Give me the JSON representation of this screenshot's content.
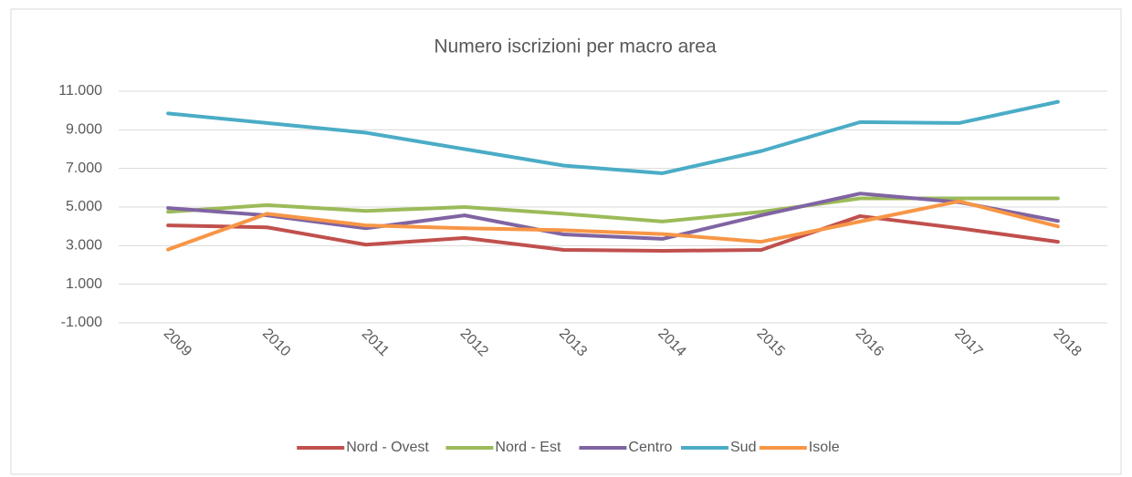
{
  "chart_data": {
    "type": "line",
    "title": "Numero iscrizioni per macro area",
    "categories": [
      "2009",
      "2010",
      "2011",
      "2012",
      "2013",
      "2014",
      "2015",
      "2016",
      "2017",
      "2018"
    ],
    "series": [
      {
        "name": "Nord - Ovest",
        "color": "#c0504d",
        "values": [
          4050,
          3950,
          3050,
          3400,
          2780,
          2730,
          2780,
          4530,
          3900,
          3200
        ]
      },
      {
        "name": "Nord - Est",
        "color": "#9bbb59",
        "values": [
          4750,
          5100,
          4800,
          5000,
          4650,
          4250,
          4750,
          5450,
          5450,
          5450
        ]
      },
      {
        "name": "Centro",
        "color": "#8064a2",
        "values": [
          4950,
          4570,
          3900,
          4570,
          3580,
          3350,
          4570,
          5700,
          5250,
          4280
        ]
      },
      {
        "name": "Sud",
        "color": "#4bacc6",
        "values": [
          9850,
          9350,
          8850,
          8000,
          7150,
          6750,
          7900,
          9400,
          9350,
          10450
        ]
      },
      {
        "name": "Isole",
        "color": "#f79646",
        "values": [
          2800,
          4650,
          4050,
          3900,
          3800,
          3600,
          3200,
          4250,
          5300,
          4000
        ]
      }
    ],
    "ylim": [
      -1000,
      11000
    ],
    "yticks": [
      {
        "value": -1000,
        "label": "-1.000"
      },
      {
        "value": 1000,
        "label": "1.000"
      },
      {
        "value": 3000,
        "label": "3.000"
      },
      {
        "value": 5000,
        "label": "5.000"
      },
      {
        "value": 7000,
        "label": "7.000"
      },
      {
        "value": 9000,
        "label": "9.000"
      },
      {
        "value": 11000,
        "label": "11.000"
      }
    ],
    "grid": true,
    "legend": "bottom"
  }
}
